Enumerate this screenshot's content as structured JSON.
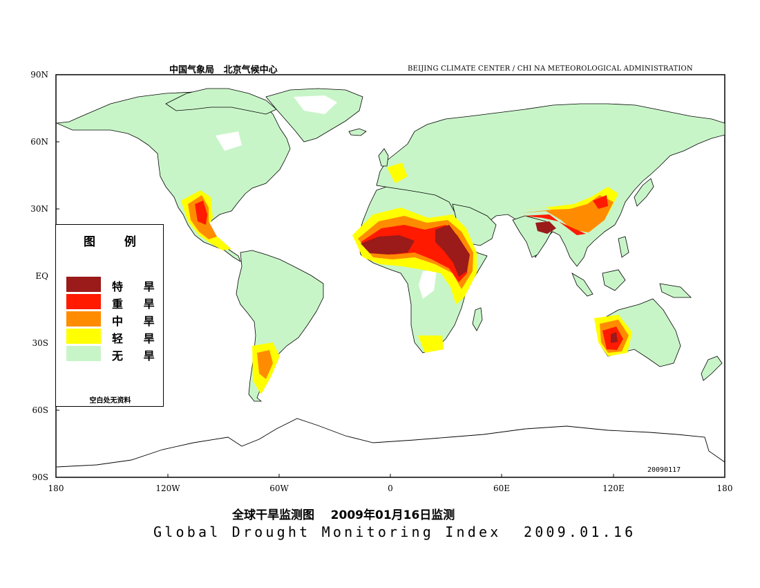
{
  "header": {
    "cn": "中国气象局   北京气候中心",
    "en": "BEIJING CLIMATE CENTER / CHI NA METEOROLOGICAL ADMINISTRATION"
  },
  "axes": {
    "lat_labels": [
      "90N",
      "60N",
      "30N",
      "EQ",
      "30S",
      "60S",
      "90S"
    ],
    "lon_labels": [
      "180",
      "120W",
      "60W",
      "0",
      "60E",
      "120E",
      "180"
    ]
  },
  "legend": {
    "title": "图  例",
    "items": [
      {
        "label": "特 旱",
        "color": "#9b1a1a"
      },
      {
        "label": "重 旱",
        "color": "#ff1a00"
      },
      {
        "label": "中 旱",
        "color": "#ff8c00"
      },
      {
        "label": "轻 旱",
        "color": "#ffff00"
      },
      {
        "label": "无 旱",
        "color": "#c8f5c8"
      }
    ],
    "note": "空白处无资料"
  },
  "colors": {
    "no_drought": "#c8f5c8",
    "light": "#ffff00",
    "moderate": "#ff8c00",
    "severe": "#ff1a00",
    "extreme": "#9b1a1a"
  },
  "date_stamp": "20090117",
  "title": {
    "cn": "全球干旱监测图    2009年01月16日监测",
    "en": "Global Drought Monitoring Index  2009.01.16"
  }
}
